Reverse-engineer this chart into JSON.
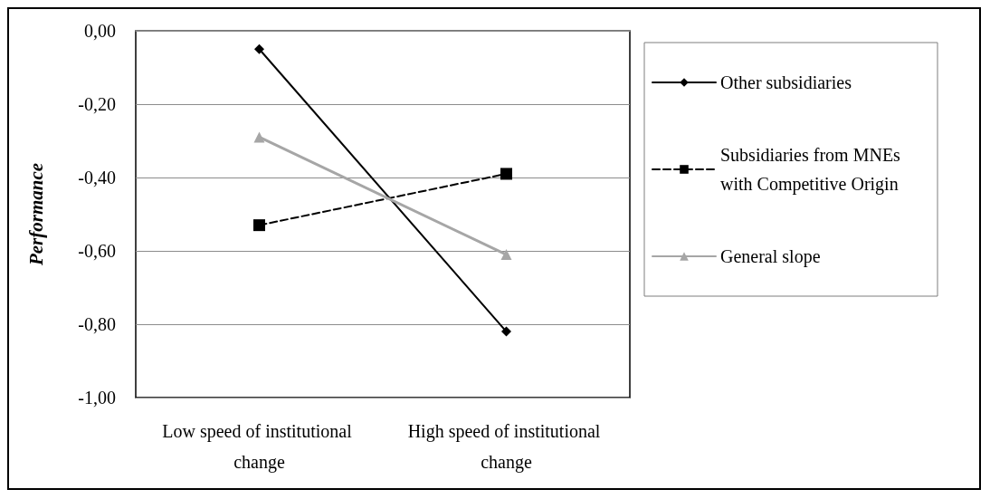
{
  "chart_data": {
    "type": "line",
    "ylabel": "Performance",
    "categories": [
      "Low speed of institutional change",
      "High speed of institutional change"
    ],
    "series": [
      {
        "name": "Other subsidiaries",
        "color": "#000000",
        "values": [
          -0.05,
          -0.82
        ],
        "marker": "diamond",
        "line_style": "solid"
      },
      {
        "name": "Subsidiaries from MNEs with Competitive Origin",
        "color": "#000000",
        "values": [
          -0.53,
          -0.39
        ],
        "marker": "square",
        "line_style": "dashed"
      },
      {
        "name": "General slope",
        "color": "#a6a6a6",
        "values": [
          -0.29,
          -0.61
        ],
        "marker": "triangle",
        "line_style": "solid"
      }
    ],
    "ylim": [
      -1,
      0
    ],
    "yticks": [
      {
        "value": -1,
        "label": "-1,00"
      },
      {
        "value": -0.8,
        "label": "-0,80"
      },
      {
        "value": -0.6,
        "label": "-0,60"
      },
      {
        "value": -0.4,
        "label": "-0,40"
      },
      {
        "value": -0.2,
        "label": "-0,20"
      },
      {
        "value": 0,
        "label": "0,00"
      }
    ],
    "grid": "y",
    "legend": "right"
  }
}
